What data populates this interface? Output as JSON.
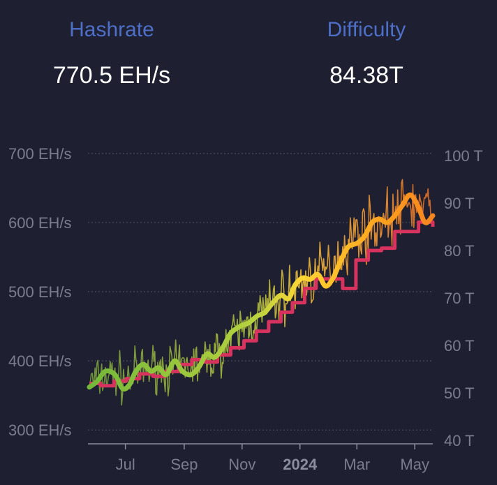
{
  "stats": {
    "hashrate": {
      "label": "Hashrate",
      "value": "770.5 EH/s"
    },
    "difficulty": {
      "label": "Difficulty",
      "value": "84.38T"
    }
  },
  "colors": {
    "background": "#1e1f31",
    "label": "#4d6fc7",
    "value": "#ffffff",
    "grid": "#4a4c5e",
    "tick": "#7a7d8e",
    "difficulty_line": "#d8325f",
    "hashrate_gradient": [
      "#74b83a",
      "#b6d23f",
      "#ffd633",
      "#ffa11e",
      "#f58420"
    ],
    "daily_gradient": [
      "#6d8f3b",
      "#9fae3e",
      "#d6a93a",
      "#d98532",
      "#c8642a"
    ]
  },
  "chart_data": {
    "type": "line",
    "x_ticks": [
      "Jul",
      "Sep",
      "Nov",
      "2024",
      "Mar",
      "May"
    ],
    "x_range": [
      "2023-05-24",
      "2024-05-20"
    ],
    "left_axis": {
      "ticks": [
        "300 EH/s",
        "400 EH/s",
        "500 EH/s",
        "600 EH/s",
        "700 EH/s"
      ],
      "range": [
        280,
        715
      ]
    },
    "right_axis": {
      "ticks": [
        "40 T",
        "50 T",
        "60 T",
        "70 T",
        "80 T",
        "90 T",
        "100 T"
      ],
      "range": [
        40,
        100
      ]
    },
    "grid": "horizontal dotted",
    "series": [
      {
        "axis": "right",
        "style": "step",
        "dates": [
          "2023-05-24",
          "2023-06-05",
          "2023-06-19",
          "2023-07-02",
          "2023-07-16",
          "2023-07-30",
          "2023-08-12",
          "2023-08-26",
          "2023-09-09",
          "2023-09-23",
          "2023-10-06",
          "2023-10-20",
          "2023-11-03",
          "2023-11-16",
          "2023-11-29",
          "2023-12-12",
          "2023-12-24",
          "2024-01-06",
          "2024-01-18",
          "2024-02-01",
          "2024-02-15",
          "2024-02-29",
          "2024-03-13",
          "2024-03-27",
          "2024-04-10",
          "2024-04-22",
          "2024-05-05",
          "2024-05-20"
        ],
        "values": [
          52,
          51.5,
          52.5,
          53,
          54,
          53.5,
          54.5,
          56,
          57,
          56.5,
          58,
          59.5,
          61,
          63,
          65,
          67,
          69,
          72,
          74,
          74,
          72,
          78,
          80,
          80.5,
          84,
          84,
          86,
          85
        ]
      },
      {
        "axis": "left",
        "style": "smooth",
        "dates": [
          "2023-05-24",
          "2023-06-01",
          "2023-06-10",
          "2023-06-20",
          "2023-06-28",
          "2023-07-05",
          "2023-07-12",
          "2023-07-20",
          "2023-07-28",
          "2023-08-05",
          "2023-08-13",
          "2023-08-22",
          "2023-08-30",
          "2023-09-08",
          "2023-09-16",
          "2023-09-25",
          "2023-10-03",
          "2023-10-12",
          "2023-10-20",
          "2023-10-30",
          "2023-11-08",
          "2023-11-17",
          "2023-11-25",
          "2023-12-04",
          "2023-12-12",
          "2023-12-20",
          "2023-12-27",
          "2024-01-04",
          "2024-01-12",
          "2024-01-20",
          "2024-01-28",
          "2024-02-05",
          "2024-02-13",
          "2024-02-21",
          "2024-03-01",
          "2024-03-09",
          "2024-03-17",
          "2024-03-25",
          "2024-04-02",
          "2024-04-10",
          "2024-04-18",
          "2024-04-26",
          "2024-05-04",
          "2024-05-12",
          "2024-05-20"
        ],
        "values": [
          362,
          370,
          385,
          380,
          360,
          365,
          385,
          395,
          385,
          390,
          380,
          400,
          385,
          380,
          390,
          410,
          405,
          420,
          440,
          450,
          455,
          465,
          470,
          485,
          495,
          490,
          510,
          520,
          518,
          525,
          508,
          520,
          545,
          565,
          570,
          580,
          600,
          605,
          600,
          610,
          625,
          640,
          625,
          600,
          610
        ]
      },
      {
        "axis": "left",
        "style": "noisy",
        "dates": [
          "2023-05-24",
          "2023-06-05",
          "2023-06-19",
          "2023-07-02",
          "2023-07-16",
          "2023-07-30",
          "2023-08-12",
          "2023-08-26",
          "2023-09-09",
          "2023-09-23",
          "2023-10-06",
          "2023-10-20",
          "2023-11-03",
          "2023-11-16",
          "2023-11-29",
          "2023-12-12",
          "2023-12-24",
          "2024-01-06",
          "2024-01-18",
          "2024-02-01",
          "2024-02-15",
          "2024-02-29",
          "2024-03-13",
          "2024-03-27",
          "2024-04-10",
          "2024-04-22",
          "2024-05-05",
          "2024-05-20"
        ],
        "values": [
          370,
          375,
          380,
          372,
          385,
          392,
          388,
          390,
          395,
          398,
          412,
          430,
          448,
          462,
          478,
          492,
          500,
          518,
          522,
          535,
          560,
          585,
          592,
          602,
          610,
          628,
          625,
          615
        ],
        "spread": [
          45,
          45,
          50,
          50,
          50,
          45,
          50,
          50,
          50,
          50,
          50,
          55,
          55,
          55,
          55,
          60,
          60,
          60,
          60,
          60,
          60,
          60,
          60,
          60,
          60,
          60,
          60,
          60
        ]
      }
    ]
  }
}
